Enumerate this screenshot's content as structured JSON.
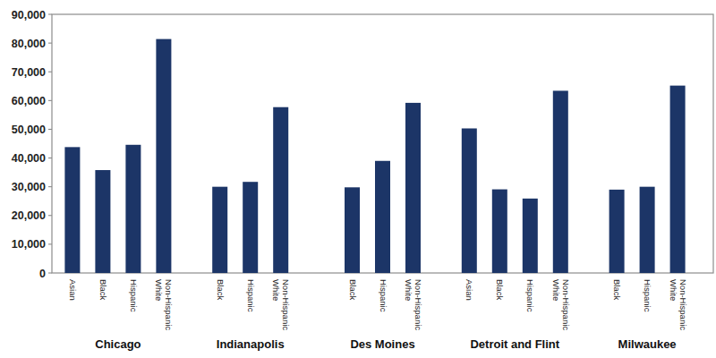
{
  "chart_data": {
    "type": "bar",
    "color": "#1c3567",
    "groups": [
      {
        "name": "Chicago",
        "categories": [
          "Asian",
          "Black",
          "Hispanic",
          "Non-Hispanic White"
        ],
        "values": [
          43800,
          35800,
          44600,
          81400
        ]
      },
      {
        "name": "Indianapolis",
        "categories": [
          "Black",
          "Hispanic",
          "Non-Hispanic White"
        ],
        "values": [
          30000,
          31700,
          57700
        ]
      },
      {
        "name": "Des Moines",
        "categories": [
          "Black",
          "Hispanic",
          "Non-Hispanic White"
        ],
        "values": [
          29800,
          39000,
          59200
        ]
      },
      {
        "name": "Detroit and Flint",
        "categories": [
          "Asian",
          "Black",
          "Hispanic",
          "Non-Hispanic White"
        ],
        "values": [
          50300,
          29100,
          25900,
          63400
        ]
      },
      {
        "name": "Milwaukee",
        "categories": [
          "Black",
          "Hispanic",
          "Non-Hispanic White"
        ],
        "values": [
          29000,
          30000,
          65200
        ]
      }
    ],
    "ylim": [
      0,
      90000
    ],
    "yticks": [
      0,
      {
        "value": 10000,
        "label": "10,000"
      },
      {
        "value": 20000,
        "label": "20,000"
      },
      {
        "value": 30000,
        "label": "30,000"
      },
      {
        "value": 40000,
        "label": "40,000"
      },
      {
        "value": 50000,
        "label": "50,000"
      },
      {
        "value": 60000,
        "label": "60,000"
      },
      {
        "value": 70000,
        "label": "70,000"
      },
      {
        "value": 80000,
        "label": "80,000"
      },
      {
        "value": 90000,
        "label": "90,000"
      }
    ],
    "grid": false
  }
}
